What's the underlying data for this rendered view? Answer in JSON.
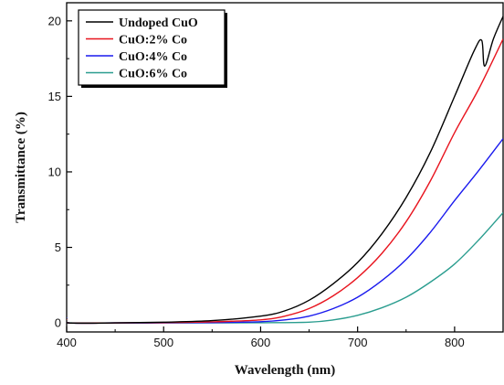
{
  "chart_data": {
    "type": "line",
    "xlabel": "Wavelength (nm)",
    "ylabel": "Transmittance (%)",
    "xlim": [
      400,
      850
    ],
    "ylim": [
      -0.6,
      21.2
    ],
    "xticks": [
      400,
      500,
      600,
      700,
      800
    ],
    "yticks": [
      0,
      5,
      10,
      15,
      20
    ],
    "x_tick_labels": [
      "400",
      "500",
      "600",
      "700",
      "800"
    ],
    "y_tick_labels": [
      "0",
      "5",
      "10",
      "15",
      "20"
    ],
    "grid": false,
    "legend_position": "top-left",
    "series": [
      {
        "name": "Undoped CuO",
        "color": "#000000",
        "points": [
          [
            400,
            0.3
          ],
          [
            402,
            0.0
          ],
          [
            450,
            0.0
          ],
          [
            500,
            0.05
          ],
          [
            550,
            0.15
          ],
          [
            600,
            0.45
          ],
          [
            625,
            0.8
          ],
          [
            650,
            1.5
          ],
          [
            675,
            2.6
          ],
          [
            700,
            4.0
          ],
          [
            725,
            5.9
          ],
          [
            750,
            8.3
          ],
          [
            775,
            11.3
          ],
          [
            800,
            15.0
          ],
          [
            820,
            18.0
          ],
          [
            828,
            18.7
          ],
          [
            831,
            17.0
          ],
          [
            840,
            18.8
          ],
          [
            850,
            20.3
          ]
        ]
      },
      {
        "name": "CuO:2% Co",
        "color": "#e8141e",
        "points": [
          [
            400,
            0.25
          ],
          [
            402,
            0.0
          ],
          [
            450,
            0.0
          ],
          [
            500,
            0.02
          ],
          [
            550,
            0.07
          ],
          [
            600,
            0.2
          ],
          [
            625,
            0.45
          ],
          [
            650,
            0.95
          ],
          [
            675,
            1.8
          ],
          [
            700,
            3.0
          ],
          [
            725,
            4.6
          ],
          [
            750,
            6.7
          ],
          [
            775,
            9.4
          ],
          [
            800,
            12.6
          ],
          [
            825,
            15.5
          ],
          [
            850,
            18.8
          ]
        ]
      },
      {
        "name": "CuO:4% Co",
        "color": "#1a1aee",
        "points": [
          [
            400,
            0.35
          ],
          [
            402,
            0.0
          ],
          [
            450,
            0.0
          ],
          [
            500,
            0.0
          ],
          [
            550,
            0.02
          ],
          [
            600,
            0.08
          ],
          [
            625,
            0.2
          ],
          [
            650,
            0.45
          ],
          [
            675,
            0.95
          ],
          [
            700,
            1.7
          ],
          [
            725,
            2.8
          ],
          [
            750,
            4.2
          ],
          [
            775,
            6.0
          ],
          [
            800,
            8.1
          ],
          [
            825,
            10.1
          ],
          [
            850,
            12.2
          ]
        ]
      },
      {
        "name": "CuO:6% Co",
        "color": "#2a9d8f",
        "points": [
          [
            400,
            0.0
          ],
          [
            450,
            0.0
          ],
          [
            500,
            0.0
          ],
          [
            550,
            0.0
          ],
          [
            600,
            0.01
          ],
          [
            650,
            0.05
          ],
          [
            675,
            0.2
          ],
          [
            700,
            0.5
          ],
          [
            725,
            1.0
          ],
          [
            750,
            1.7
          ],
          [
            775,
            2.7
          ],
          [
            800,
            3.9
          ],
          [
            825,
            5.5
          ],
          [
            850,
            7.3
          ]
        ]
      }
    ]
  }
}
